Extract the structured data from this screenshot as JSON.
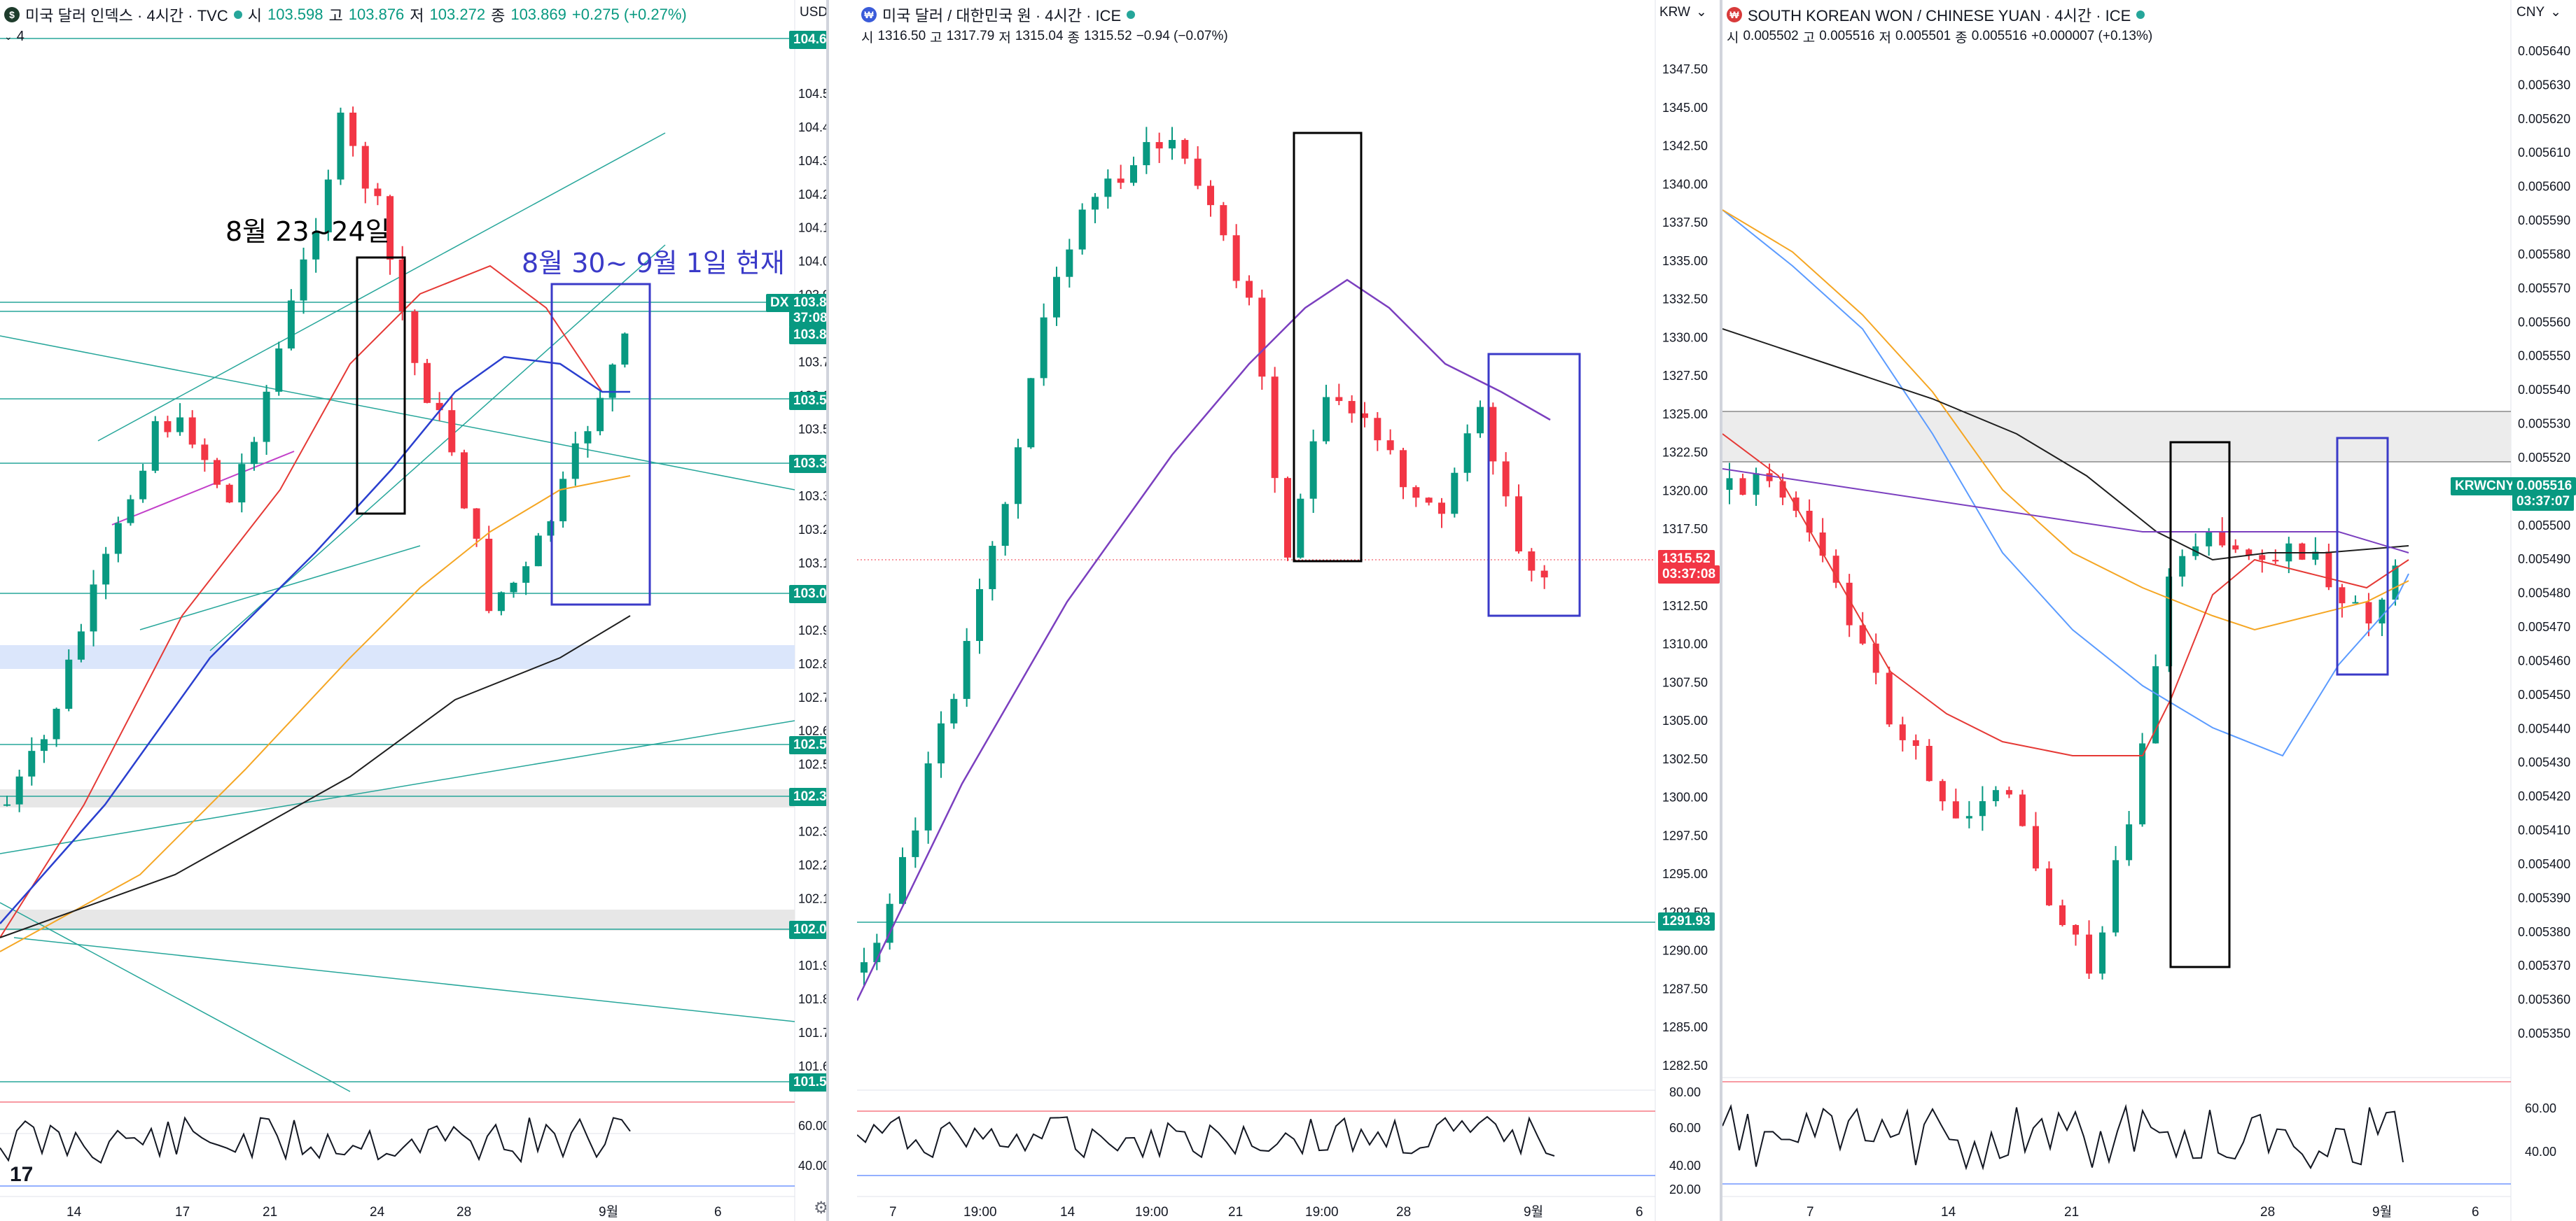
{
  "panels": [
    {
      "header": {
        "icon": "$",
        "title": "미국 달러 인덱스 · 4시간 · TVC",
        "o_label": "시",
        "o": "103.598",
        "h_label": "고",
        "h": "103.876",
        "l_label": "저",
        "l": "103.272",
        "c_label": "종",
        "c": "103.869",
        "chg": "+0.275 (+0.27%)"
      },
      "indicator_label": "4",
      "currency": "USD",
      "price_ticks": [
        "104.500",
        "104.400",
        "104.300",
        "104.200",
        "104.100",
        "104.000",
        "103.900",
        "103.800",
        "103.700",
        "103.600",
        "103.500",
        "103.400",
        "103.300",
        "103.200",
        "103.100",
        "103.000",
        "102.900",
        "102.800",
        "102.700",
        "102.600",
        "102.500",
        "102.400",
        "102.300",
        "102.200",
        "102.100",
        "102.000",
        "101.900",
        "101.800",
        "101.700",
        "101.600"
      ],
      "badges": [
        {
          "text": "104.650",
          "color": "#089981"
        },
        {
          "text": "DXY",
          "color": "#089981"
        },
        {
          "text": "103.869",
          "color": "#089981"
        },
        {
          "text": "37:08",
          "color": "#089981"
        },
        {
          "text": "103.840",
          "color": "#089981"
        },
        {
          "text": "103.575",
          "color": "#089981"
        },
        {
          "text": "103.387",
          "color": "#089981"
        },
        {
          "text": "103.004",
          "color": "#089981"
        },
        {
          "text": "102.554",
          "color": "#089981"
        },
        {
          "text": "102.394",
          "color": "#089981"
        },
        {
          "text": "102.006",
          "color": "#089981"
        },
        {
          "text": "101.551",
          "color": "#089981"
        }
      ],
      "osc_ticks": [
        "60.00",
        "40.00"
      ],
      "time_ticks": [
        "14",
        "17",
        "21",
        "24",
        "28",
        "9월",
        "6"
      ],
      "annotations": [
        "8월 23~24일",
        "8월 30~ 9월 1일 현재"
      ]
    },
    {
      "header": {
        "icon": "₩",
        "title": "미국 달러 / 대한민국 원 · 4시간 · ICE",
        "o_label": "시",
        "o": "1316.50",
        "h_label": "고",
        "h": "1317.79",
        "l_label": "저",
        "l": "1315.04",
        "c_label": "종",
        "c": "1315.52",
        "chg": "−0.94 (−0.07%)"
      },
      "currency": "KRW",
      "price_ticks": [
        "1347.50",
        "1345.00",
        "1342.50",
        "1340.00",
        "1337.50",
        "1335.00",
        "1332.50",
        "1330.00",
        "1327.50",
        "1325.00",
        "1322.50",
        "1320.00",
        "1317.50",
        "1315.00",
        "1312.50",
        "1310.00",
        "1307.50",
        "1305.00",
        "1302.50",
        "1300.00",
        "1297.50",
        "1295.00",
        "1292.50",
        "1290.00",
        "1287.50",
        "1285.00",
        "1282.50"
      ],
      "badges": [
        {
          "text": "1315.52",
          "color": "#f23645"
        },
        {
          "text": "03:37:08",
          "color": "#f23645"
        },
        {
          "text": "1291.93",
          "color": "#089981"
        }
      ],
      "osc_ticks": [
        "80.00",
        "60.00",
        "40.00",
        "20.00"
      ],
      "time_ticks": [
        "7",
        "19:00",
        "14",
        "19:00",
        "21",
        "19:00",
        "28",
        "9월",
        "6"
      ]
    },
    {
      "header": {
        "icon": "₩",
        "title": "SOUTH KOREAN WON / CHINESE YUAN · 4시간 · ICE",
        "o_label": "시",
        "o": "0.005502",
        "h_label": "고",
        "h": "0.005516",
        "l_label": "저",
        "l": "0.005501",
        "c_label": "종",
        "c": "0.005516",
        "chg": "+0.000007 (+0.13%)"
      },
      "currency": "CNY",
      "price_ticks": [
        "0.005640",
        "0.005630",
        "0.005620",
        "0.005610",
        "0.005600",
        "0.005590",
        "0.005580",
        "0.005570",
        "0.005560",
        "0.005550",
        "0.005540",
        "0.005530",
        "0.005520",
        "0.005510",
        "0.005500",
        "0.005490",
        "0.005480",
        "0.005470",
        "0.005460",
        "0.005450",
        "0.005440",
        "0.005430",
        "0.005420",
        "0.005410",
        "0.005400",
        "0.005390",
        "0.005380",
        "0.005370",
        "0.005360",
        "0.005350"
      ],
      "badges": [
        {
          "text": "KRWCNY",
          "color": "#089981"
        },
        {
          "text": "0.005516",
          "color": "#089981"
        },
        {
          "text": "03:37:07",
          "color": "#089981"
        }
      ],
      "osc_ticks": [
        "60.00",
        "40.00"
      ],
      "time_ticks": [
        "7",
        "14",
        "21",
        "28",
        "9월",
        "6"
      ]
    }
  ],
  "colors": {
    "up": "#089981",
    "down": "#f23645",
    "ma_blue": "#2a3fcf",
    "ma_orange": "#f5a623",
    "ma_black": "#1e1e1e",
    "ma_red": "#e53935",
    "ma_purple": "#7b3fbf",
    "trend_green": "#26a69a",
    "annot_black": "#000000",
    "annot_blue": "#3a3ac8"
  },
  "logo": "17"
}
